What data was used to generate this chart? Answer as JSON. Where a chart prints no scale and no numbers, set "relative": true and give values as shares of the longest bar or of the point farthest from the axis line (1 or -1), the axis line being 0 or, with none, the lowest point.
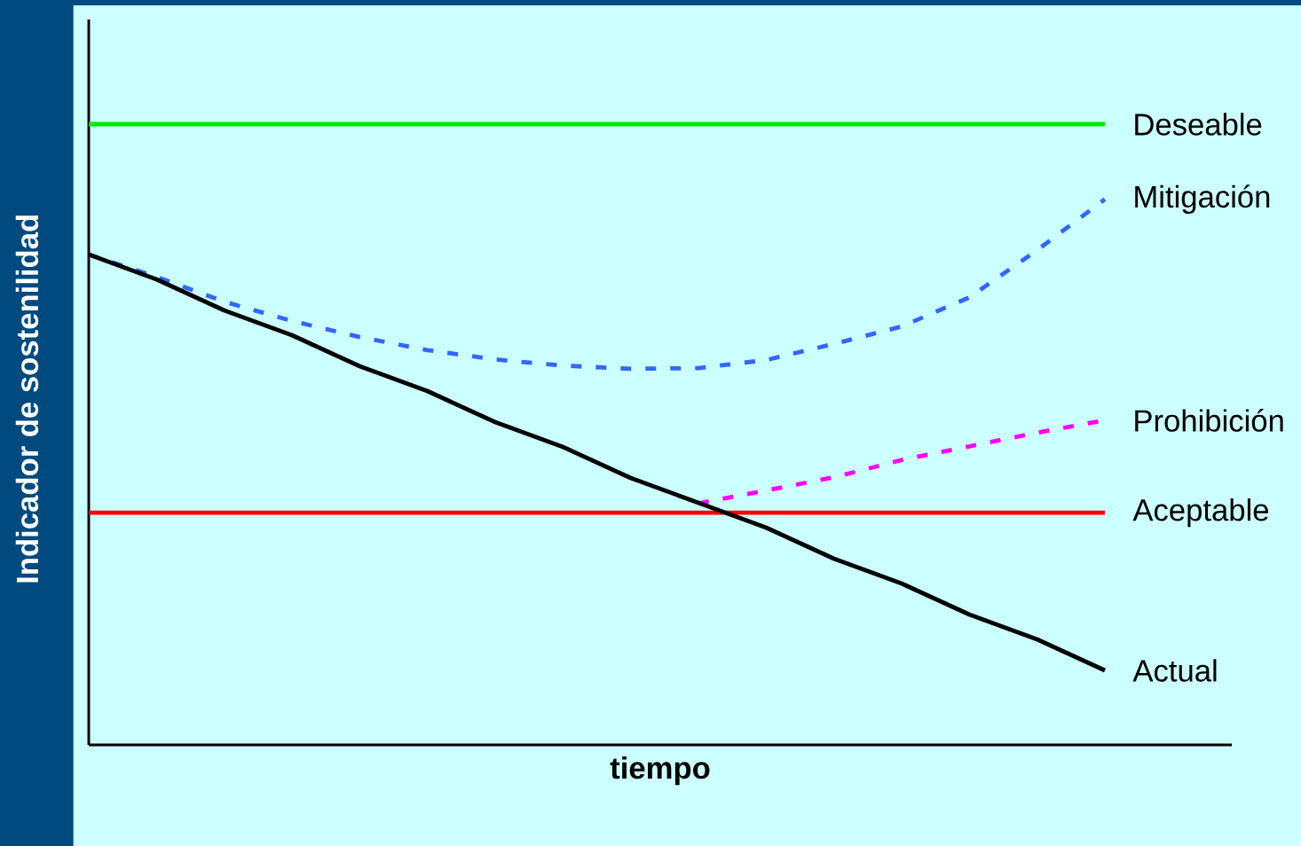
{
  "chart_data": {
    "type": "line",
    "relative": true,
    "xlabel": "tiempo",
    "ylabel": "Indicador de sostenilidad",
    "categories": [
      null,
      null,
      null,
      null,
      null,
      null,
      null,
      null,
      null,
      null,
      null,
      null,
      null,
      null,
      null,
      null
    ],
    "series": [
      {
        "name": "Deseable",
        "color": "#00e600",
        "line_style": "solid",
        "values": [
          1,
          1,
          1,
          1,
          1,
          1,
          1,
          1,
          1,
          1,
          1,
          1,
          1,
          1,
          1,
          1
        ]
      },
      {
        "name": "Mitigación",
        "color": "#3366ff",
        "line_style": "dashed",
        "values": [
          0.79,
          0.754,
          0.714,
          0.683,
          0.657,
          0.636,
          0.621,
          0.611,
          0.606,
          0.607,
          0.62,
          0.646,
          0.674,
          0.721,
          0.797,
          0.879
        ]
      },
      {
        "name": "Prohibición",
        "color": "#ff00ff",
        "line_style": "dashed",
        "values": [
          null,
          null,
          null,
          null,
          null,
          null,
          null,
          null,
          null,
          0.389,
          0.41,
          0.431,
          0.459,
          0.481,
          0.503,
          0.523
        ]
      },
      {
        "name": "Aceptable",
        "color": "#ff0000",
        "line_style": "solid",
        "values": [
          0.374,
          0.374,
          0.374,
          0.374,
          0.374,
          0.374,
          0.374,
          0.374,
          0.374,
          0.374,
          0.374,
          0.374,
          0.374,
          0.374,
          0.374,
          0.374
        ]
      },
      {
        "name": "Actual",
        "color": "#000000",
        "line_style": "solid",
        "values": [
          0.79,
          0.75,
          0.7,
          0.66,
          0.61,
          0.57,
          0.52,
          0.48,
          0.43,
          0.39,
          0.35,
          0.3,
          0.26,
          0.21,
          0.17,
          0.12
        ]
      }
    ]
  }
}
